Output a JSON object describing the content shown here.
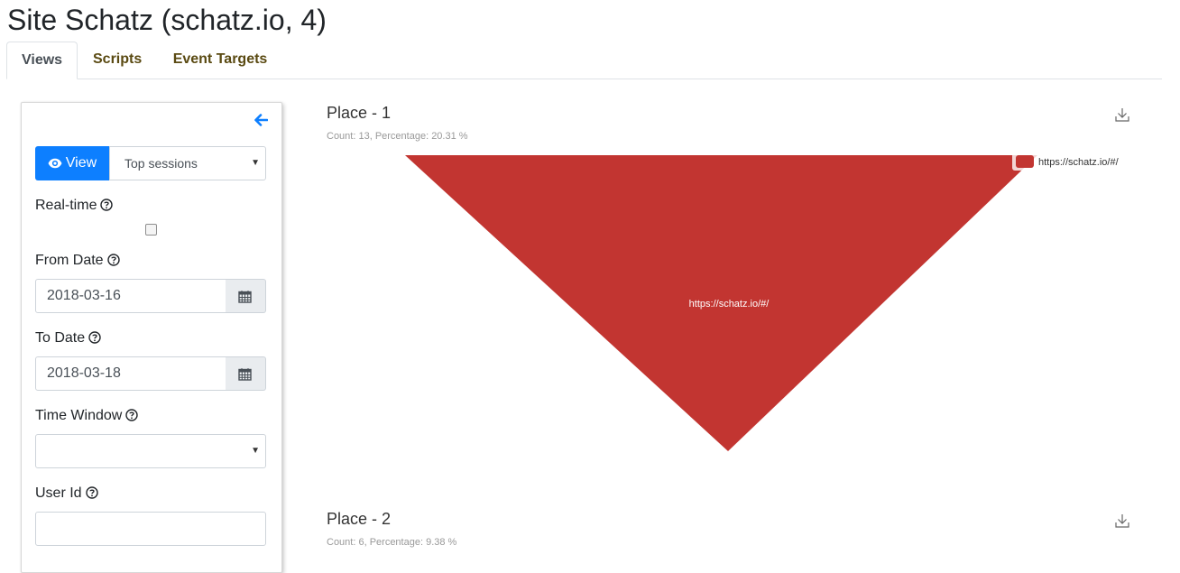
{
  "page": {
    "title": "Site Schatz (schatz.io, 4)"
  },
  "tabs": [
    {
      "label": "Views",
      "active": true
    },
    {
      "label": "Scripts",
      "active": false
    },
    {
      "label": "Event Targets",
      "active": false
    }
  ],
  "sidebar": {
    "view_button": "View",
    "view_select": "Top sessions",
    "realtime_label": "Real-time",
    "realtime_checked": false,
    "from_date_label": "From Date",
    "from_date_value": "2018-03-16",
    "to_date_label": "To Date",
    "to_date_value": "2018-03-18",
    "time_window_label": "Time Window",
    "time_window_value": "",
    "user_id_label": "User Id",
    "user_id_value": ""
  },
  "charts": [
    {
      "title": "Place - 1",
      "subtitle": "Count: 13, Percentage: 20.31 %"
    },
    {
      "title": "Place - 2",
      "subtitle": "Count: 6, Percentage: 9.38 %"
    }
  ],
  "chart_data": {
    "type": "funnel",
    "series": [
      {
        "name": "https://schatz.io/#/",
        "values": [
          13
        ]
      }
    ],
    "slice_labels": [
      "https://schatz.io/#/"
    ],
    "legend": "top-right",
    "colors": {
      "slice": "#c23531"
    }
  },
  "colors": {
    "accent": "#0d7fff",
    "tab_text": "#5a4a12"
  },
  "icons": {
    "back": "arrow-left-icon",
    "view": "eye-icon",
    "help": "question-circle-icon",
    "calendar": "calendar-icon",
    "download": "download-icon"
  }
}
